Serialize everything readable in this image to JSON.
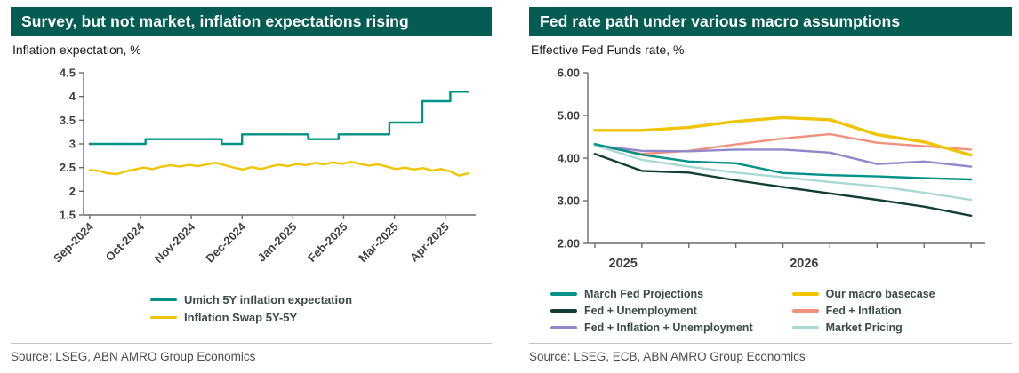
{
  "colors": {
    "header_bg": "#045c52",
    "axis": "#6b6b6b",
    "tick_text": "#3f3f3f",
    "legend_text": "#3c4b48"
  },
  "left_panel": {
    "title": "Survey, but not market, inflation expectations rising",
    "subtitle": "Inflation expectation, %",
    "source": "Source: LSEG, ABN AMRO Group Economics"
  },
  "right_panel": {
    "title": "Fed rate path under various macro assumptions",
    "subtitle": "Effective Fed Funds rate, %",
    "source": "Source:  LSEG, ECB, ABN AMRO Group Economics"
  },
  "chart_data": [
    {
      "type": "line",
      "title": "Survey, but not market, inflation expectations rising",
      "ylabel": "Inflation expectation, %",
      "xlim": [
        -0.12,
        7.6
      ],
      "ylim": [
        1.5,
        4.5
      ],
      "x_start": 0,
      "x_end": 7.45,
      "yticks": [
        {
          "v": 1.5,
          "label": "1.5"
        },
        {
          "v": 2,
          "label": "2"
        },
        {
          "v": 2.5,
          "label": "2.5"
        },
        {
          "v": 3,
          "label": "3"
        },
        {
          "v": 3.5,
          "label": "3.5"
        },
        {
          "v": 4,
          "label": "4"
        },
        {
          "v": 4.5,
          "label": "4.5"
        }
      ],
      "xticks": [
        0,
        1,
        2,
        3,
        4,
        5,
        6,
        7
      ],
      "xlabels": [
        {
          "pos": 0,
          "text": "Sep-2024"
        },
        {
          "pos": 1,
          "text": "Oct-2024"
        },
        {
          "pos": 2,
          "text": "Nov-2024"
        },
        {
          "pos": 3,
          "text": "Dec-2024"
        },
        {
          "pos": 4,
          "text": "Jan-2025"
        },
        {
          "pos": 5,
          "text": "Feb-2025"
        },
        {
          "pos": 6,
          "text": "Mar-2025"
        },
        {
          "pos": 7,
          "text": "Apr-2025"
        }
      ],
      "series": [
        {
          "name": "Umich 5Y inflation expectation",
          "color": "#009286",
          "w": 2.4,
          "z": 1,
          "points": [
            [
              0,
              3.0
            ],
            [
              1.1,
              3.0
            ],
            [
              1.1,
              3.1
            ],
            [
              2.6,
              3.1
            ],
            [
              2.6,
              3.0
            ],
            [
              3.0,
              3.0
            ],
            [
              3.0,
              3.2
            ],
            [
              4.3,
              3.2
            ],
            [
              4.3,
              3.1
            ],
            [
              4.9,
              3.1
            ],
            [
              4.9,
              3.2
            ],
            [
              5.9,
              3.2
            ],
            [
              5.9,
              3.45
            ],
            [
              6.55,
              3.45
            ],
            [
              6.55,
              3.9
            ],
            [
              7.1,
              3.9
            ],
            [
              7.1,
              4.1
            ],
            [
              7.45,
              4.1
            ]
          ]
        },
        {
          "name": "Inflation Swap 5Y-5Y",
          "color": "#f0c400",
          "w": 2.4,
          "values": [
            2.45,
            2.43,
            2.38,
            2.36,
            2.42,
            2.46,
            2.5,
            2.47,
            2.52,
            2.55,
            2.52,
            2.56,
            2.53,
            2.57,
            2.6,
            2.55,
            2.5,
            2.46,
            2.51,
            2.47,
            2.52,
            2.56,
            2.53,
            2.58,
            2.55,
            2.6,
            2.57,
            2.61,
            2.58,
            2.62,
            2.58,
            2.54,
            2.57,
            2.52,
            2.47,
            2.5,
            2.46,
            2.49,
            2.44,
            2.47,
            2.42,
            2.33,
            2.38
          ]
        }
      ]
    },
    {
      "type": "line",
      "title": "Fed rate path under various macro assumptions",
      "ylabel": "Effective Fed Funds rate, %",
      "xlim": [
        -0.15,
        8.3
      ],
      "ylim": [
        2,
        6
      ],
      "x_start": 0,
      "x_end": 8,
      "yticks": [
        {
          "v": 2,
          "label": "2.00"
        },
        {
          "v": 3,
          "label": "3.00"
        },
        {
          "v": 4,
          "label": "4.00"
        },
        {
          "v": 5,
          "label": "5.00"
        },
        {
          "v": 6,
          "label": "6.00"
        }
      ],
      "xticks": [
        0,
        1,
        2,
        3,
        4,
        5,
        6,
        7,
        8
      ],
      "xlabels": [
        {
          "pos": 0.6,
          "text": "2025"
        },
        {
          "pos": 4.45,
          "text": "2026"
        }
      ],
      "series": [
        {
          "name": "March Fed Projections",
          "color": "#009286",
          "w": 2.4,
          "z": 1,
          "values": [
            4.33,
            4.08,
            3.92,
            3.88,
            3.65,
            3.6,
            3.57,
            3.53,
            3.5
          ]
        },
        {
          "name": "Our macro basecase",
          "color": "#f0c400",
          "w": 3.4,
          "z": 2,
          "values": [
            4.65,
            4.65,
            4.72,
            4.86,
            4.95,
            4.9,
            4.55,
            4.38,
            4.07
          ]
        },
        {
          "name": "Fed + Unemployment",
          "color": "#123f35",
          "w": 2.4,
          "values": [
            4.1,
            3.7,
            3.66,
            3.48,
            3.32,
            3.17,
            3.02,
            2.86,
            2.65
          ]
        },
        {
          "name": "Fed + Inflation",
          "color": "#f2917e",
          "w": 2.4,
          "values": [
            4.3,
            4.1,
            4.17,
            4.32,
            4.46,
            4.56,
            4.36,
            4.28,
            4.2
          ]
        },
        {
          "name": "Fed + Inflation + Unemployment",
          "color": "#9187cc",
          "w": 2.4,
          "values": [
            4.3,
            4.17,
            4.16,
            4.2,
            4.2,
            4.13,
            3.86,
            3.92,
            3.8
          ]
        },
        {
          "name": "Market Pricing",
          "color": "#a8d9d3",
          "w": 2.4,
          "values": [
            4.3,
            3.96,
            3.8,
            3.66,
            3.55,
            3.44,
            3.34,
            3.19,
            3.02
          ]
        }
      ]
    }
  ]
}
